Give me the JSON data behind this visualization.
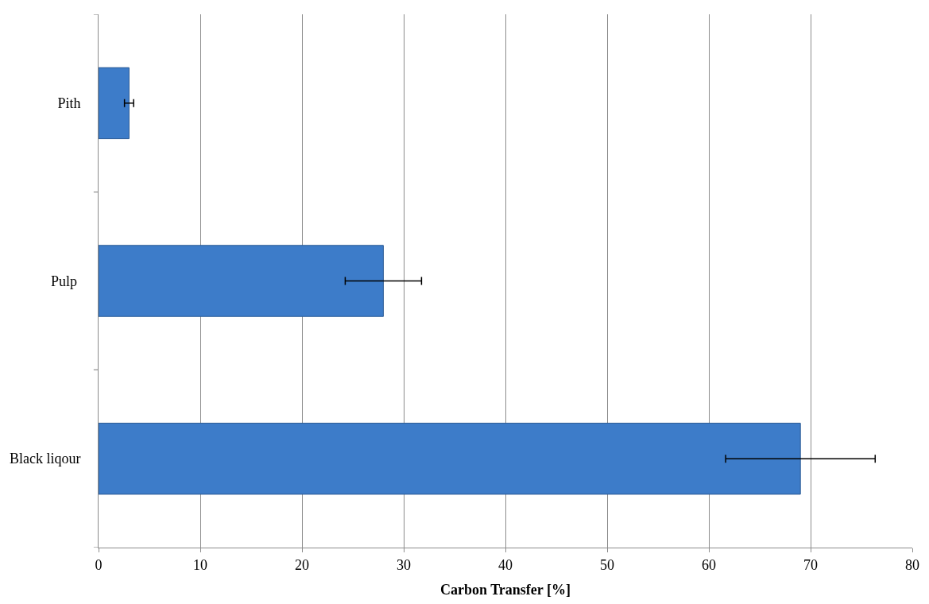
{
  "chart_data": {
    "type": "bar",
    "orientation": "horizontal",
    "xlabel": "Carbon Transfer [%]",
    "categories": [
      "Pith",
      "Pulp ",
      "Black liqour"
    ],
    "values": [
      3.0,
      28.0,
      69.0
    ],
    "errors": [
      0.45,
      3.75,
      7.35
    ],
    "color": "#3d7cc9",
    "xlim": [
      0,
      80
    ],
    "xticks": [
      0,
      10,
      20,
      30,
      40,
      50,
      60,
      70,
      80
    ],
    "grid": "x"
  }
}
